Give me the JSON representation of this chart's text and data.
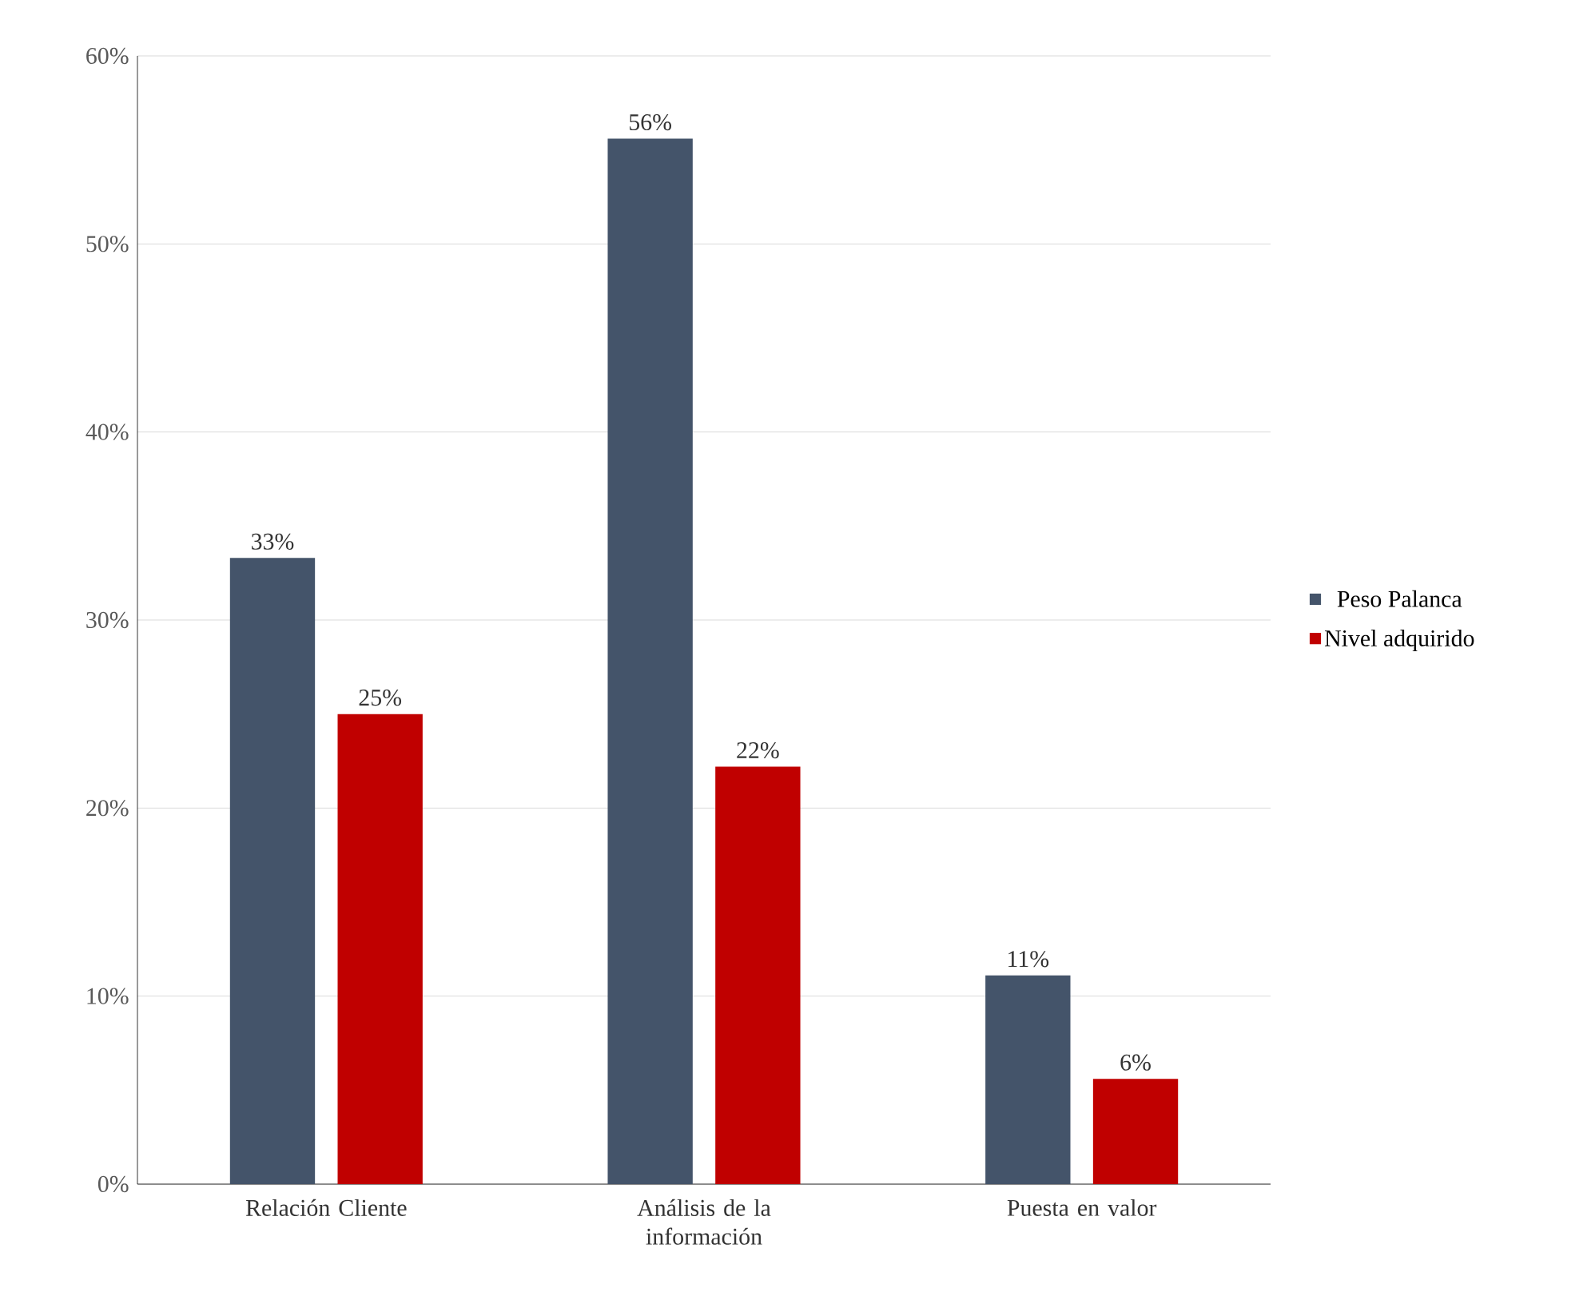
{
  "chart_data": {
    "type": "bar",
    "categories": [
      "Relación Cliente",
      "Análisis de la información",
      "Puesta en valor"
    ],
    "series": [
      {
        "name": "Peso Palanca",
        "color": "#44546a",
        "values": [
          33.3,
          55.6,
          11.1
        ],
        "value_labels": [
          "33%",
          "56%",
          "11%"
        ]
      },
      {
        "name": "Nivel adquirido",
        "color": "#c00000",
        "values": [
          25,
          22.2,
          5.6
        ],
        "value_labels": [
          "25%",
          "22%",
          "6%"
        ]
      }
    ],
    "ylim": [
      0,
      60
    ],
    "yticks": [
      {
        "value": 0,
        "label": "0%"
      },
      {
        "value": 10,
        "label": "10%"
      },
      {
        "value": 20,
        "label": "20%"
      },
      {
        "value": 30,
        "label": "30%"
      },
      {
        "value": 40,
        "label": "40%"
      },
      {
        "value": 50,
        "label": "50%"
      },
      {
        "value": 60,
        "label": "60%"
      }
    ],
    "grid": "y",
    "legend": "right"
  }
}
